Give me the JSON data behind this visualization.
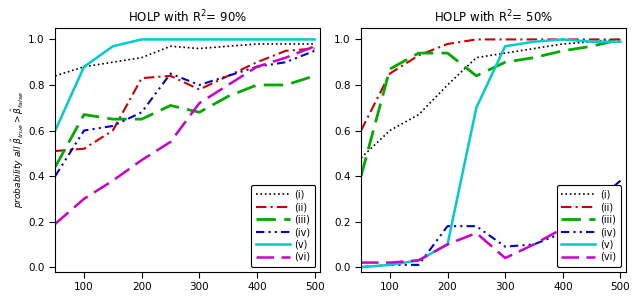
{
  "title1": "HOLP with R$^2$= 90%",
  "title2": "HOLP with R$^2$= 50%",
  "ylabel": "probability all $\\hat{\\beta}_{true}>\\hat{\\beta}_{false}$",
  "x": [
    50,
    100,
    150,
    200,
    250,
    300,
    350,
    400,
    450,
    500
  ],
  "plot1": {
    "i": [
      0.84,
      0.88,
      0.9,
      0.92,
      0.97,
      0.96,
      0.97,
      0.98,
      0.98,
      0.98
    ],
    "ii": [
      0.51,
      0.52,
      0.6,
      0.83,
      0.84,
      0.78,
      0.84,
      0.9,
      0.95,
      0.96
    ],
    "iii": [
      0.44,
      0.67,
      0.65,
      0.65,
      0.71,
      0.68,
      0.75,
      0.8,
      0.8,
      0.84
    ],
    "iv": [
      0.4,
      0.6,
      0.62,
      0.68,
      0.85,
      0.8,
      0.84,
      0.88,
      0.9,
      0.95
    ],
    "v": [
      0.6,
      0.88,
      0.97,
      1.0,
      1.0,
      1.0,
      1.0,
      1.0,
      1.0,
      1.0
    ],
    "vi": [
      0.19,
      0.3,
      0.38,
      0.47,
      0.55,
      0.72,
      0.8,
      0.88,
      0.92,
      0.97
    ]
  },
  "plot2": {
    "i": [
      0.48,
      0.6,
      0.67,
      0.8,
      0.92,
      0.94,
      0.96,
      0.98,
      0.99,
      1.0
    ],
    "ii": [
      0.6,
      0.85,
      0.93,
      0.98,
      1.0,
      1.0,
      1.0,
      1.0,
      1.0,
      1.0
    ],
    "iii": [
      0.4,
      0.87,
      0.94,
      0.94,
      0.84,
      0.9,
      0.92,
      0.95,
      0.97,
      1.0
    ],
    "iv": [
      0.0,
      0.01,
      0.01,
      0.18,
      0.18,
      0.09,
      0.1,
      0.15,
      0.27,
      0.38
    ],
    "v": [
      0.0,
      0.01,
      0.03,
      0.1,
      0.7,
      0.97,
      0.99,
      1.0,
      0.99,
      0.99
    ],
    "vi": [
      0.02,
      0.02,
      0.03,
      0.1,
      0.15,
      0.04,
      0.1,
      0.17,
      0.23,
      0.29
    ]
  },
  "ylim": [
    0.0,
    1.0
  ],
  "yticks": [
    0.0,
    0.2,
    0.4,
    0.6,
    0.8,
    1.0
  ],
  "xticks": [
    100,
    200,
    300,
    400,
    500
  ],
  "bg_color": "#f0f0f0",
  "plot_bg": "#ffffff"
}
